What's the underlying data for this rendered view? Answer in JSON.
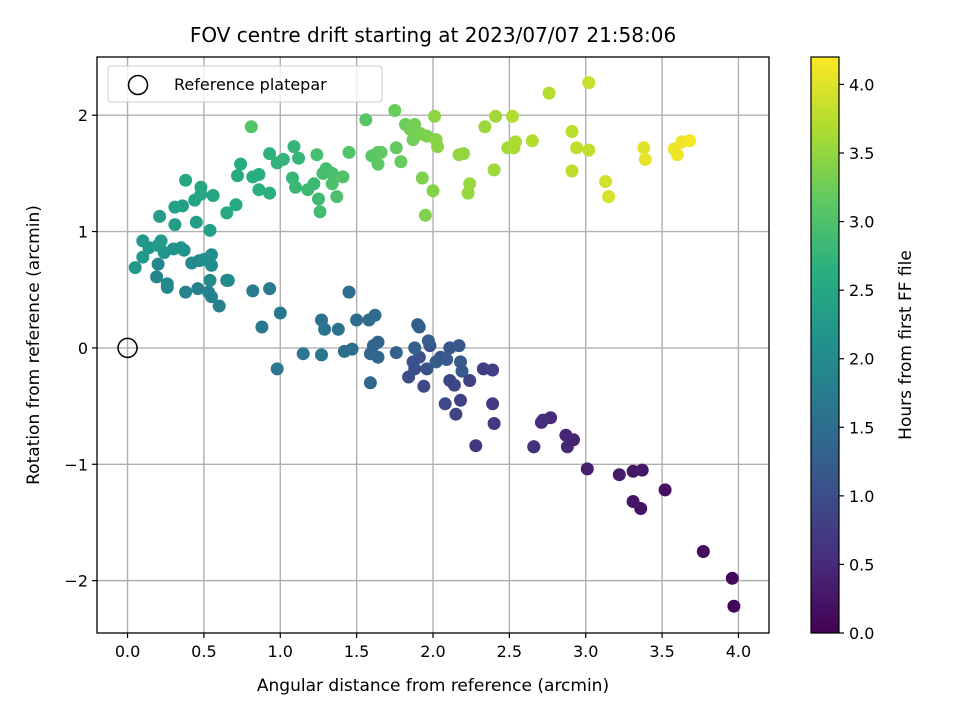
{
  "chart_data": {
    "type": "scatter",
    "title": "FOV centre drift starting at 2023/07/07 21:58:06",
    "xlabel": "Angular distance from reference (arcmin)",
    "ylabel": "Rotation from reference (arcmin)",
    "xlim": [
      -0.2,
      4.2
    ],
    "ylim": [
      -2.45,
      2.5
    ],
    "xticks": [
      0.0,
      0.5,
      1.0,
      1.5,
      2.0,
      2.5,
      3.0,
      3.5,
      4.0
    ],
    "xtick_labels": [
      "0.0",
      "0.5",
      "1.0",
      "1.5",
      "2.0",
      "2.5",
      "3.0",
      "3.5",
      "4.0"
    ],
    "yticks": [
      -2,
      -1,
      0,
      1,
      2
    ],
    "ytick_labels": [
      "−2",
      "−1",
      "0",
      "1",
      "2"
    ],
    "grid": true,
    "colormap": "viridis",
    "colorbar": {
      "label": "Hours from first FF file",
      "range": [
        0.0,
        4.2
      ],
      "ticks": [
        0.0,
        0.5,
        1.0,
        1.5,
        2.0,
        2.5,
        3.0,
        3.5,
        4.0
      ],
      "tick_labels": [
        "0.0",
        "0.5",
        "1.0",
        "1.5",
        "2.0",
        "2.5",
        "3.0",
        "3.5",
        "4.0"
      ]
    },
    "legend": {
      "placement": "top-left",
      "entries": [
        "Reference platepar"
      ]
    },
    "reference_point": {
      "x": 0.0,
      "y": 0.0
    },
    "points": [
      [
        3.97,
        -2.22,
        0.05
      ],
      [
        3.96,
        -1.98,
        0.08
      ],
      [
        3.77,
        -1.75,
        0.12
      ],
      [
        3.52,
        -1.22,
        0.18
      ],
      [
        3.36,
        -1.38,
        0.22
      ],
      [
        3.31,
        -1.32,
        0.25
      ],
      [
        3.31,
        -1.06,
        0.26
      ],
      [
        3.37,
        -1.05,
        0.28
      ],
      [
        3.22,
        -1.09,
        0.3
      ],
      [
        3.01,
        -1.04,
        0.35
      ],
      [
        2.92,
        -0.79,
        0.42
      ],
      [
        2.87,
        -0.75,
        0.45
      ],
      [
        2.88,
        -0.85,
        0.47
      ],
      [
        2.77,
        -0.6,
        0.5
      ],
      [
        2.71,
        -0.64,
        0.52
      ],
      [
        2.72,
        -0.62,
        0.55
      ],
      [
        2.66,
        -0.85,
        0.58
      ],
      [
        2.66,
        -0.85,
        0.6
      ],
      [
        2.28,
        -0.84,
        0.65
      ],
      [
        2.4,
        -0.65,
        0.7
      ],
      [
        2.39,
        -0.48,
        0.72
      ],
      [
        2.33,
        -0.18,
        0.75
      ],
      [
        2.39,
        -0.19,
        0.78
      ],
      [
        2.24,
        -0.28,
        0.8
      ],
      [
        2.18,
        -0.45,
        0.82
      ],
      [
        2.15,
        -0.57,
        0.85
      ],
      [
        2.14,
        -0.32,
        0.88
      ],
      [
        2.11,
        -0.28,
        0.9
      ],
      [
        2.08,
        -0.48,
        0.92
      ],
      [
        1.94,
        -0.33,
        0.95
      ],
      [
        1.84,
        -0.25,
        0.98
      ],
      [
        1.88,
        -0.18,
        1.0
      ],
      [
        1.91,
        -0.08,
        1.02
      ],
      [
        1.87,
        -0.12,
        1.04
      ],
      [
        1.96,
        -0.18,
        1.06
      ],
      [
        1.98,
        0.02,
        1.08
      ],
      [
        2.05,
        -0.08,
        1.1
      ],
      [
        2.11,
        0.0,
        1.12
      ],
      [
        2.17,
        0.02,
        1.14
      ],
      [
        2.18,
        -0.12,
        1.16
      ],
      [
        2.19,
        -0.2,
        1.18
      ],
      [
        2.09,
        -0.1,
        1.2
      ],
      [
        2.02,
        -0.12,
        1.22
      ],
      [
        1.97,
        0.06,
        1.24
      ],
      [
        1.9,
        0.2,
        1.26
      ],
      [
        1.91,
        0.18,
        1.28
      ],
      [
        1.88,
        0.0,
        1.3
      ],
      [
        1.76,
        -0.04,
        1.32
      ],
      [
        1.64,
        0.05,
        1.34
      ],
      [
        1.61,
        0.02,
        1.36
      ],
      [
        1.64,
        -0.08,
        1.38
      ],
      [
        1.59,
        -0.05,
        1.4
      ],
      [
        1.59,
        -0.3,
        1.42
      ],
      [
        1.62,
        0.28,
        1.44
      ],
      [
        1.58,
        0.24,
        1.46
      ],
      [
        1.5,
        0.24,
        1.48
      ],
      [
        1.45,
        0.48,
        1.5
      ],
      [
        1.47,
        -0.01,
        1.52
      ],
      [
        1.42,
        -0.03,
        1.54
      ],
      [
        1.38,
        0.16,
        1.56
      ],
      [
        1.27,
        0.24,
        1.58
      ],
      [
        1.29,
        0.16,
        1.6
      ],
      [
        1.27,
        -0.06,
        1.62
      ],
      [
        1.15,
        -0.05,
        1.64
      ],
      [
        0.98,
        -0.18,
        1.66
      ],
      [
        0.88,
        0.18,
        1.68
      ],
      [
        1.0,
        0.3,
        1.7
      ],
      [
        0.93,
        0.51,
        1.72
      ],
      [
        0.82,
        0.49,
        1.74
      ],
      [
        0.65,
        0.58,
        1.76
      ],
      [
        0.6,
        0.36,
        1.78
      ],
      [
        0.55,
        0.44,
        1.8
      ],
      [
        0.53,
        0.48,
        1.82
      ],
      [
        0.46,
        0.51,
        1.84
      ],
      [
        0.38,
        0.48,
        1.86
      ],
      [
        0.26,
        0.52,
        1.88
      ],
      [
        0.19,
        0.61,
        1.9
      ],
      [
        0.2,
        0.72,
        1.92
      ],
      [
        0.26,
        0.55,
        1.94
      ],
      [
        0.42,
        0.73,
        1.96
      ],
      [
        0.47,
        0.75,
        1.98
      ],
      [
        0.54,
        0.58,
        2.0
      ],
      [
        0.66,
        0.58,
        2.02
      ],
      [
        0.55,
        0.71,
        2.04
      ],
      [
        0.5,
        0.76,
        2.06
      ],
      [
        0.55,
        0.8,
        2.08
      ],
      [
        0.37,
        0.84,
        2.1
      ],
      [
        0.35,
        0.86,
        2.12
      ],
      [
        0.3,
        0.85,
        2.14
      ],
      [
        0.24,
        0.82,
        2.16
      ],
      [
        0.14,
        0.86,
        2.18
      ],
      [
        0.1,
        0.92,
        2.2
      ],
      [
        0.05,
        0.69,
        2.22
      ],
      [
        0.1,
        0.78,
        2.24
      ],
      [
        0.2,
        0.88,
        2.26
      ],
      [
        0.22,
        0.92,
        2.28
      ],
      [
        0.21,
        1.13,
        2.3
      ],
      [
        0.31,
        1.06,
        2.32
      ],
      [
        0.36,
        1.22,
        2.34
      ],
      [
        0.45,
        1.08,
        2.36
      ],
      [
        0.54,
        1.01,
        2.38
      ],
      [
        0.31,
        1.21,
        2.4
      ],
      [
        0.44,
        1.27,
        2.42
      ],
      [
        0.48,
        1.32,
        2.44
      ],
      [
        0.56,
        1.31,
        2.46
      ],
      [
        0.48,
        1.38,
        2.48
      ],
      [
        0.38,
        1.44,
        2.5
      ],
      [
        0.65,
        1.16,
        2.52
      ],
      [
        0.71,
        1.23,
        2.54
      ],
      [
        0.72,
        1.48,
        2.56
      ],
      [
        0.74,
        1.58,
        2.58
      ],
      [
        0.82,
        1.47,
        2.6
      ],
      [
        0.86,
        1.49,
        2.62
      ],
      [
        0.86,
        1.36,
        2.64
      ],
      [
        0.93,
        1.33,
        2.66
      ],
      [
        0.93,
        1.67,
        2.68
      ],
      [
        0.98,
        1.59,
        2.7
      ],
      [
        1.02,
        1.62,
        2.72
      ],
      [
        1.09,
        1.73,
        2.74
      ],
      [
        1.12,
        1.63,
        2.76
      ],
      [
        1.08,
        1.46,
        2.78
      ],
      [
        1.1,
        1.38,
        2.8
      ],
      [
        1.18,
        1.36,
        2.82
      ],
      [
        1.22,
        1.41,
        2.84
      ],
      [
        1.25,
        1.28,
        2.86
      ],
      [
        1.26,
        1.17,
        2.88
      ],
      [
        1.28,
        1.5,
        2.9
      ],
      [
        1.3,
        1.54,
        2.92
      ],
      [
        1.24,
        1.66,
        2.94
      ],
      [
        1.34,
        1.5,
        2.96
      ],
      [
        1.34,
        1.41,
        2.98
      ],
      [
        1.37,
        1.3,
        3.0
      ],
      [
        1.41,
        1.47,
        3.02
      ],
      [
        1.45,
        1.68,
        3.04
      ],
      [
        0.81,
        1.9,
        3.06
      ],
      [
        1.56,
        1.96,
        3.08
      ],
      [
        1.6,
        1.65,
        3.1
      ],
      [
        1.64,
        1.68,
        3.12
      ],
      [
        1.64,
        1.58,
        3.14
      ],
      [
        1.66,
        1.68,
        3.16
      ],
      [
        1.76,
        1.72,
        3.18
      ],
      [
        1.79,
        1.6,
        3.2
      ],
      [
        1.75,
        2.04,
        3.22
      ],
      [
        1.82,
        1.92,
        3.24
      ],
      [
        1.85,
        1.88,
        3.26
      ],
      [
        1.87,
        1.79,
        3.28
      ],
      [
        1.88,
        1.92,
        3.3
      ],
      [
        1.92,
        1.84,
        3.32
      ],
      [
        1.96,
        1.82,
        3.34
      ],
      [
        1.93,
        1.46,
        3.36
      ],
      [
        1.95,
        1.14,
        3.38
      ],
      [
        2.0,
        1.35,
        3.4
      ],
      [
        2.02,
        1.79,
        3.42
      ],
      [
        2.03,
        1.73,
        3.44
      ],
      [
        2.01,
        1.99,
        3.46
      ],
      [
        2.17,
        1.66,
        3.48
      ],
      [
        2.2,
        1.67,
        3.5
      ],
      [
        2.23,
        1.33,
        3.52
      ],
      [
        2.24,
        1.41,
        3.54
      ],
      [
        2.34,
        1.9,
        3.56
      ],
      [
        2.4,
        1.53,
        3.58
      ],
      [
        2.41,
        1.99,
        3.6
      ],
      [
        2.49,
        1.72,
        3.62
      ],
      [
        2.53,
        1.72,
        3.64
      ],
      [
        2.54,
        1.77,
        3.66
      ],
      [
        2.52,
        1.99,
        3.68
      ],
      [
        2.65,
        1.78,
        3.7
      ],
      [
        2.76,
        2.19,
        3.72
      ],
      [
        2.91,
        1.86,
        3.75
      ],
      [
        2.91,
        1.52,
        3.78
      ],
      [
        2.94,
        1.72,
        3.8
      ],
      [
        3.02,
        1.7,
        3.82
      ],
      [
        3.02,
        2.28,
        3.85
      ],
      [
        3.13,
        1.43,
        3.9
      ],
      [
        3.15,
        1.3,
        3.95
      ],
      [
        3.38,
        1.72,
        4.0
      ],
      [
        3.39,
        1.62,
        4.05
      ],
      [
        3.58,
        1.71,
        4.08
      ],
      [
        3.6,
        1.66,
        4.1
      ],
      [
        3.63,
        1.77,
        4.12
      ],
      [
        3.68,
        1.78,
        4.15
      ]
    ]
  }
}
